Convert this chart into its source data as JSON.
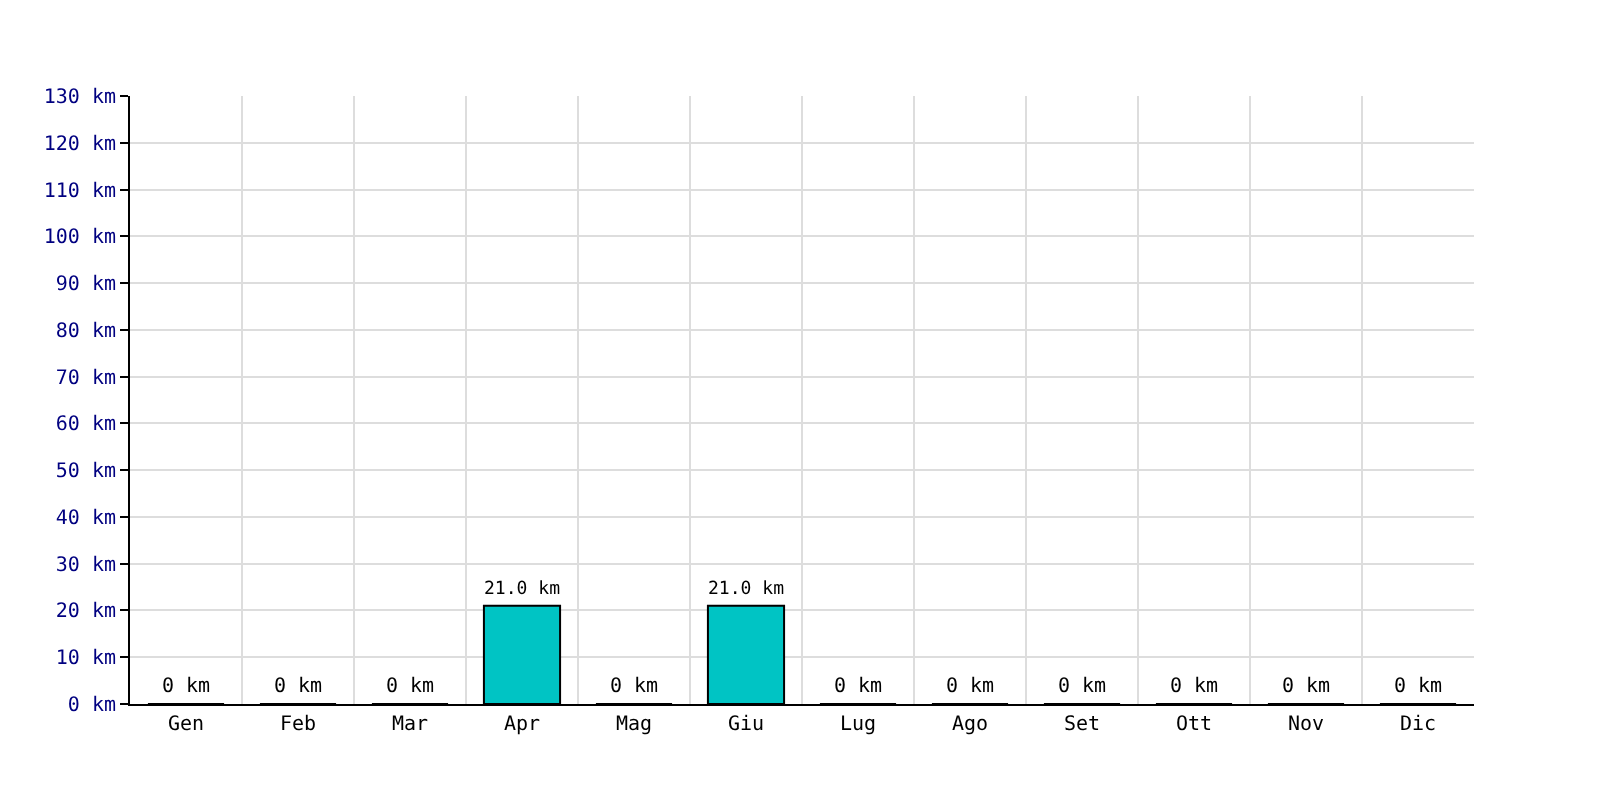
{
  "chart_data": {
    "type": "bar",
    "categories": [
      "Gen",
      "Feb",
      "Mar",
      "Apr",
      "Mag",
      "Giu",
      "Lug",
      "Ago",
      "Set",
      "Ott",
      "Nov",
      "Dic"
    ],
    "values": [
      0,
      0,
      0,
      21.0,
      0,
      21.0,
      0,
      0,
      0,
      0,
      0,
      0
    ],
    "value_labels": [
      "0 km",
      "0 km",
      "0 km",
      "21.0 km",
      "0 km",
      "21.0 km",
      "0 km",
      "0 km",
      "0 km",
      "0 km",
      "0 km",
      "0 km"
    ],
    "color": "#00c4c4",
    "ylim": [
      0,
      130
    ],
    "yticks": [
      {
        "value": 0,
        "label": "0 km"
      },
      {
        "value": 10,
        "label": "10 km"
      },
      {
        "value": 20,
        "label": "20 km"
      },
      {
        "value": 30,
        "label": "30 km"
      },
      {
        "value": 40,
        "label": "40 km"
      },
      {
        "value": 50,
        "label": "50 km"
      },
      {
        "value": 60,
        "label": "60 km"
      },
      {
        "value": 70,
        "label": "70 km"
      },
      {
        "value": 80,
        "label": "80 km"
      },
      {
        "value": 90,
        "label": "90 km"
      },
      {
        "value": 100,
        "label": "100 km"
      },
      {
        "value": 110,
        "label": "110 km"
      },
      {
        "value": 120,
        "label": "120 km"
      },
      {
        "value": 130,
        "label": "130 km"
      }
    ],
    "grid": true
  }
}
